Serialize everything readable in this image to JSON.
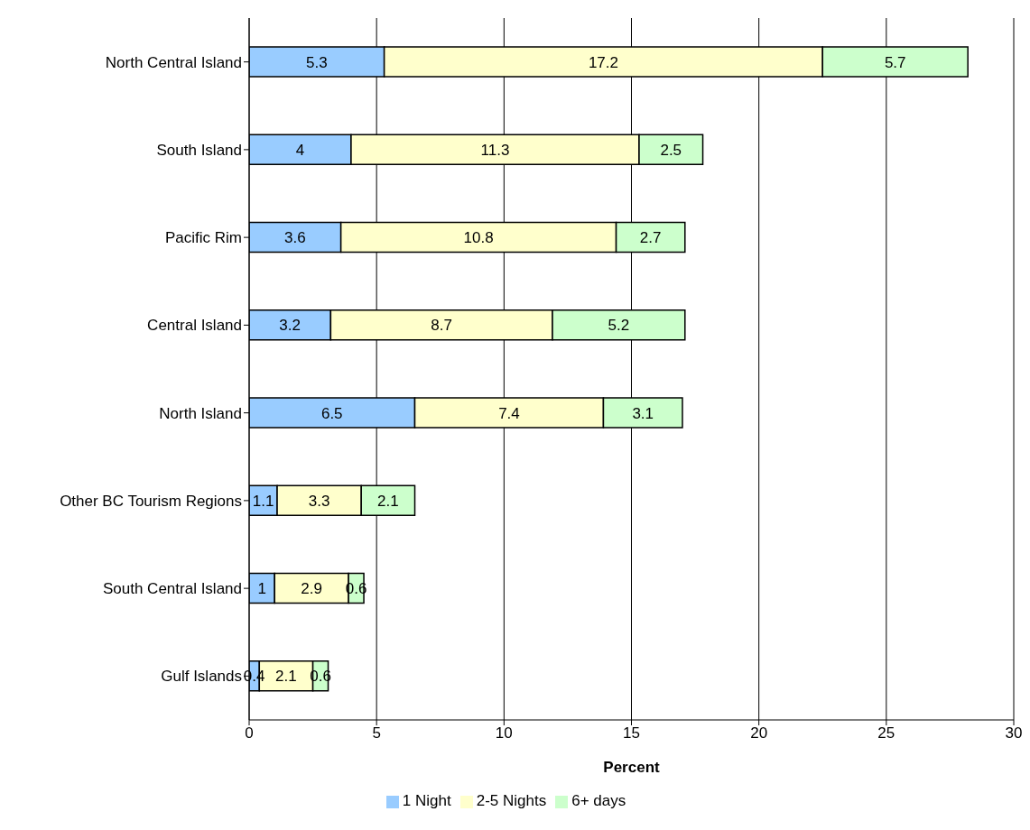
{
  "chart_data": {
    "type": "bar",
    "orientation": "horizontal",
    "stacked": true,
    "xlabel": "Percent",
    "categories": [
      "North Central Island",
      "South Island",
      "Pacific Rim",
      "Central Island",
      "North Island",
      "Other BC Tourism Regions",
      "South Central Island",
      "Gulf Islands"
    ],
    "series": [
      {
        "name": "1 Night",
        "color": "#99ccff",
        "values": [
          5.3,
          4,
          3.6,
          3.2,
          6.5,
          1.1,
          1,
          0.4
        ]
      },
      {
        "name": "2-5 Nights",
        "color": "#ffffcc",
        "values": [
          17.2,
          11.3,
          10.8,
          8.7,
          7.4,
          3.3,
          2.9,
          2.1
        ]
      },
      {
        "name": "6+ days",
        "color": "#ccffcc",
        "values": [
          5.7,
          2.5,
          2.7,
          5.2,
          3.1,
          2.1,
          0.6,
          0.6
        ]
      }
    ],
    "xlim": [
      0,
      30
    ],
    "xticks": [
      0,
      5,
      10,
      15,
      20,
      25,
      30
    ],
    "grid": "x",
    "legend": "bottom",
    "data_labels": true
  }
}
